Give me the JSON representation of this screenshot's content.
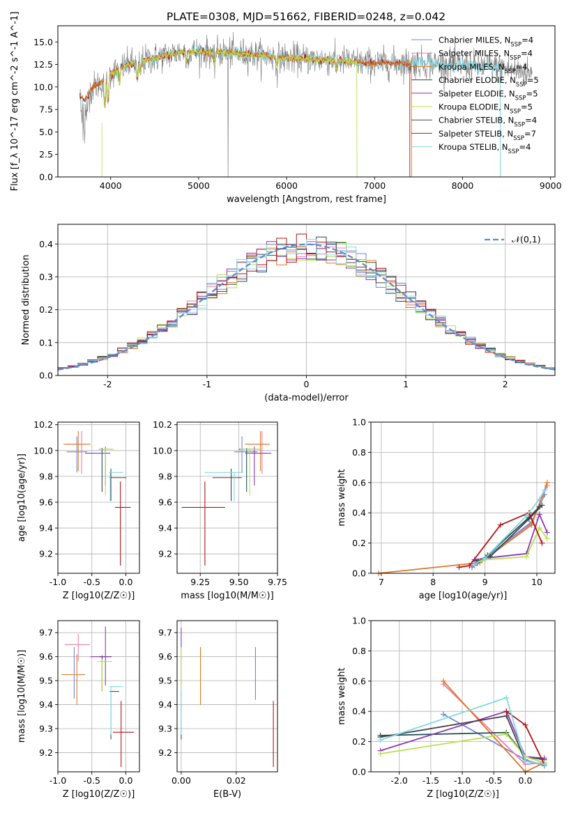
{
  "title": "PLATE=0308, MJD=51662, FIBERID=0248, z=0.042",
  "colors": {
    "Chabrier MILES": "#6a89d6",
    "Salpeter MILES": "#ea7fa9",
    "Kroupa MILES": "#e07722",
    "Chabrier ELODIE": "#1f4d57",
    "Salpeter ELODIE": "#8e35b5",
    "Kroupa ELODIE": "#b7e14a",
    "Chabrier STELIB": "#444444",
    "Salpeter STELIB": "#b21212",
    "Kroupa STELIB": "#7fd9e3",
    "gaussian": "#5b8bd6"
  },
  "chart_data": [
    {
      "id": "spectrum",
      "type": "line",
      "title": "PLATE=0308, MJD=51662, FIBERID=0248, z=0.042",
      "xlabel": "wavelength [Angstrom, rest frame]",
      "ylabel": "Flux [f_λ 10^-17 erg cm^-2 s^-1 A^-1]",
      "xlim": [
        3400,
        9050
      ],
      "ylim": [
        0,
        16.8
      ],
      "xticks": [
        4000,
        5000,
        6000,
        7000,
        8000,
        9000
      ],
      "yticks": [
        0.0,
        2.5,
        5.0,
        7.5,
        10.0,
        12.5,
        15.0
      ],
      "legend_position": "upper-right",
      "legend": [
        {
          "name": "Chabrier MILES",
          "nssp": "4"
        },
        {
          "name": "Salpeter MILES",
          "nssp": "4"
        },
        {
          "name": "Kroupa MILES",
          "nssp": "4"
        },
        {
          "name": "Chabrier ELODIE",
          "nssp": "5"
        },
        {
          "name": "Salpeter ELODIE",
          "nssp": "5"
        },
        {
          "name": "Kroupa ELODIE",
          "nssp": "5"
        },
        {
          "name": "Chabrier STELIB",
          "nssp": "4"
        },
        {
          "name": "Salpeter STELIB",
          "nssp": "7"
        },
        {
          "name": "Kroupa STELIB",
          "nssp": "4"
        }
      ],
      "data_continuum": [
        [
          3650,
          9.0
        ],
        [
          3700,
          8.5
        ],
        [
          3800,
          10.0
        ],
        [
          3900,
          10.5
        ],
        [
          4000,
          11.5
        ],
        [
          4200,
          12.5
        ],
        [
          4500,
          13.2
        ],
        [
          4800,
          13.9
        ],
        [
          5200,
          13.9
        ],
        [
          5600,
          13.6
        ],
        [
          6000,
          13.2
        ],
        [
          6500,
          13.0
        ],
        [
          7000,
          12.6
        ],
        [
          7500,
          12.7
        ],
        [
          8000,
          12.4
        ],
        [
          8400,
          12.2
        ],
        [
          8800,
          11.5
        ]
      ],
      "models": [
        {
          "name": "Kroupa STELIB",
          "wmin": 3650,
          "wmax": 8430
        },
        {
          "name": "Salpeter STELIB",
          "wmin": 3650,
          "wmax": 7400
        },
        {
          "name": "Kroupa MILES",
          "wmin": 3650,
          "wmax": 7420
        },
        {
          "name": "Kroupa ELODIE",
          "wmin": 3880,
          "wmax": 6800
        }
      ]
    },
    {
      "id": "residuals",
      "type": "line",
      "xlabel": "(data-model)/error",
      "ylabel": "Normed distribution",
      "xlim": [
        -2.5,
        2.5
      ],
      "ylim": [
        0,
        0.46
      ],
      "xticks": [
        -2,
        -1,
        0,
        1,
        2
      ],
      "yticks": [
        0.0,
        0.1,
        0.2,
        0.3,
        0.4
      ],
      "grid": true,
      "legend_position": "upper-right",
      "gaussian_label": "𝒩(0,1)",
      "bin_width": 0.1
    },
    {
      "id": "age_vs_Z",
      "type": "scatter",
      "xlabel": "Z [log10(Z/Z☉)]",
      "ylabel": "age  [log10(age/yr)]",
      "xlim": [
        -1.0,
        0.2
      ],
      "ylim": [
        9.05,
        10.22
      ],
      "xticks": [
        -1.0,
        -0.5,
        0.0
      ],
      "yticks": [
        9.2,
        9.4,
        9.6,
        9.8,
        10.0,
        10.2
      ],
      "grid": true,
      "points": [
        {
          "model": "Chabrier MILES",
          "x": -0.72,
          "xerr": [
            0.15,
            0.15
          ],
          "y": 9.99,
          "yerr": [
            0.16,
            0.12
          ]
        },
        {
          "model": "Salpeter MILES",
          "x": -0.65,
          "xerr": [
            0.27,
            0.1
          ],
          "y": 10.05,
          "yerr": [
            0.23,
            0.1
          ]
        },
        {
          "model": "Kroupa MILES",
          "x": -0.7,
          "xerr": [
            0.2,
            0.18
          ],
          "y": 10.05,
          "yerr": [
            0.21,
            0.1
          ]
        },
        {
          "model": "Chabrier ELODIE",
          "x": -0.35,
          "xerr": [
            0.05,
            0.15
          ],
          "y": 10.01,
          "yerr": [
            0.33,
            0.01
          ]
        },
        {
          "model": "Salpeter ELODIE",
          "x": -0.3,
          "xerr": [
            0.3,
            0.07
          ],
          "y": 9.98,
          "yerr": [
            0.25,
            0.05
          ]
        },
        {
          "model": "Kroupa ELODIE",
          "x": -0.3,
          "xerr": [
            0.1,
            0.12
          ],
          "y": 10.01,
          "yerr": [
            0.36,
            0.01
          ]
        },
        {
          "model": "Chabrier STELIB",
          "x": -0.22,
          "xerr": [
            0.02,
            0.23
          ],
          "y": 9.79,
          "yerr": [
            0.18,
            0.07
          ]
        },
        {
          "model": "Salpeter STELIB",
          "x": -0.08,
          "xerr": [
            0.08,
            0.15
          ],
          "y": 9.56,
          "yerr": [
            0.45,
            0.2
          ]
        },
        {
          "model": "Kroupa STELIB",
          "x": -0.23,
          "xerr": [
            0.02,
            0.19
          ],
          "y": 9.83,
          "yerr": [
            0.22,
            0.0
          ]
        }
      ]
    },
    {
      "id": "age_vs_mass",
      "type": "scatter",
      "xlabel": "mass [log10(M/M☉)]",
      "xlim": [
        9.1,
        9.75
      ],
      "ylim": [
        9.05,
        10.22
      ],
      "xticks": [
        9.25,
        9.5,
        9.75
      ],
      "yticks": [
        9.2,
        9.4,
        9.6,
        9.8,
        10.0,
        10.2
      ],
      "grid": true,
      "points": [
        {
          "model": "Chabrier MILES",
          "x": 9.52,
          "xerr": [
            0.05,
            0.1
          ],
          "y": 9.99,
          "yerr": [
            0.16,
            0.12
          ]
        },
        {
          "model": "Salpeter MILES",
          "x": 9.65,
          "xerr": [
            0.1,
            0.05
          ],
          "y": 10.05,
          "yerr": [
            0.23,
            0.1
          ]
        },
        {
          "model": "Kroupa MILES",
          "x": 9.64,
          "xerr": [
            0.1,
            0.06
          ],
          "y": 10.05,
          "yerr": [
            0.21,
            0.1
          ]
        },
        {
          "model": "Chabrier ELODIE",
          "x": 9.55,
          "xerr": [
            0.05,
            0.09
          ],
          "y": 10.01,
          "yerr": [
            0.33,
            0.01
          ]
        },
        {
          "model": "Salpeter ELODIE",
          "x": 9.6,
          "xerr": [
            0.06,
            0.11
          ],
          "y": 9.98,
          "yerr": [
            0.25,
            0.05
          ]
        },
        {
          "model": "Kroupa ELODIE",
          "x": 9.57,
          "xerr": [
            0.06,
            0.08
          ],
          "y": 10.01,
          "yerr": [
            0.36,
            0.01
          ]
        },
        {
          "model": "Chabrier STELIB",
          "x": 9.45,
          "xerr": [
            0.12,
            0.07
          ],
          "y": 9.79,
          "yerr": [
            0.18,
            0.07
          ]
        },
        {
          "model": "Salpeter STELIB",
          "x": 9.28,
          "xerr": [
            0.15,
            0.13
          ],
          "y": 9.56,
          "yerr": [
            0.45,
            0.2
          ]
        },
        {
          "model": "Kroupa STELIB",
          "x": 9.47,
          "xerr": [
            0.19,
            0.06
          ],
          "y": 9.83,
          "yerr": [
            0.22,
            0.0
          ]
        }
      ]
    },
    {
      "id": "massweight_vs_age",
      "type": "line",
      "xlabel": "age  [log10(age/yr)]",
      "ylabel": "mass weight",
      "xlim": [
        6.8,
        10.35
      ],
      "ylim": [
        0,
        1.0
      ],
      "xticks": [
        7,
        8,
        9,
        10
      ],
      "yticks": [
        0.0,
        0.2,
        0.4,
        0.6,
        0.8,
        1.0
      ],
      "grid": true,
      "series": [
        {
          "name": "Chabrier MILES",
          "x": [
            8.75,
            9.0,
            9.9,
            10.15
          ],
          "y": [
            0.04,
            0.1,
            0.34,
            0.52
          ]
        },
        {
          "name": "Salpeter MILES",
          "x": [
            8.8,
            9.0,
            9.9,
            10.2
          ],
          "y": [
            0.05,
            0.09,
            0.33,
            0.58
          ]
        },
        {
          "name": "Kroupa MILES",
          "x": [
            6.95,
            8.9,
            9.9,
            10.2
          ],
          "y": [
            0.0,
            0.07,
            0.32,
            0.6
          ]
        },
        {
          "name": "Chabrier ELODIE",
          "x": [
            8.8,
            9.1,
            9.85,
            10.1
          ],
          "y": [
            0.08,
            0.11,
            0.36,
            0.45
          ]
        },
        {
          "name": "Salpeter ELODIE",
          "x": [
            8.8,
            9.0,
            9.8,
            10.05,
            10.2
          ],
          "y": [
            0.09,
            0.1,
            0.13,
            0.39,
            0.27
          ]
        },
        {
          "name": "Kroupa ELODIE",
          "x": [
            8.9,
            9.0,
            9.8,
            10.05,
            10.2
          ],
          "y": [
            0.08,
            0.09,
            0.11,
            0.3,
            0.23
          ]
        },
        {
          "name": "Chabrier STELIB",
          "x": [
            8.85,
            9.05,
            9.85,
            10.05
          ],
          "y": [
            0.07,
            0.12,
            0.37,
            0.44
          ]
        },
        {
          "name": "Salpeter STELIB",
          "x": [
            8.5,
            8.7,
            9.3,
            9.85,
            10.1
          ],
          "y": [
            0.04,
            0.05,
            0.32,
            0.4,
            0.2
          ]
        },
        {
          "name": "Kroupa STELIB",
          "x": [
            8.8,
            9.0,
            9.8,
            10.05,
            10.15
          ],
          "y": [
            0.06,
            0.1,
            0.38,
            0.49,
            0.55
          ]
        }
      ]
    },
    {
      "id": "mass_vs_Z",
      "type": "scatter",
      "xlabel": "Z [log10(Z/Z☉)]",
      "ylabel": "mass [log10(M/M☉)]",
      "xlim": [
        -1.0,
        0.2
      ],
      "ylim": [
        9.12,
        9.75
      ],
      "xticks": [
        -1.0,
        -0.5,
        0.0
      ],
      "yticks": [
        9.2,
        9.3,
        9.4,
        9.5,
        9.6,
        9.7
      ],
      "grid": true,
      "points": [
        {
          "model": "Chabrier MILES",
          "x": -0.76,
          "xerr": [
            0.17,
            0.14
          ],
          "y": 9.525,
          "yerr": [
            0.1,
            0.115
          ]
        },
        {
          "model": "Salpeter MILES",
          "x": -0.7,
          "xerr": [
            0.2,
            0.17
          ],
          "y": 9.65,
          "yerr": [
            0.07,
            0.045
          ]
        },
        {
          "model": "Kroupa MILES",
          "x": -0.72,
          "xerr": [
            0.23,
            0.12
          ],
          "y": 9.525,
          "yerr": [
            0.125,
            0.085
          ]
        },
        {
          "model": "Chabrier ELODIE",
          "x": -0.35,
          "xerr": [
            0.05,
            0.14
          ],
          "y": 9.6,
          "yerr": [
            0.145,
            0.005
          ]
        },
        {
          "model": "Salpeter ELODIE",
          "x": -0.3,
          "xerr": [
            0.22,
            0.08
          ],
          "y": 9.6,
          "yerr": [
            0.12,
            0.125
          ]
        },
        {
          "model": "Kroupa ELODIE",
          "x": -0.35,
          "xerr": [
            0.07,
            0.14
          ],
          "y": 9.58,
          "yerr": [
            0.125,
            0.01
          ]
        },
        {
          "model": "Chabrier STELIB",
          "x": -0.22,
          "xerr": [
            0.02,
            0.12
          ],
          "y": 9.455,
          "yerr": [
            0.2,
            0.005
          ]
        },
        {
          "model": "Salpeter STELIB",
          "x": -0.07,
          "xerr": [
            0.12,
            0.19
          ],
          "y": 9.285,
          "yerr": [
            0.145,
            0.13
          ]
        },
        {
          "model": "Kroupa STELIB",
          "x": -0.22,
          "xerr": [
            0.02,
            0.18
          ],
          "y": 9.475,
          "yerr": [
            0.2,
            0.0
          ]
        }
      ]
    },
    {
      "id": "mass_vs_EBV",
      "type": "scatter",
      "xlabel": "E(B-V)",
      "xlim": [
        -0.0015,
        0.035
      ],
      "ylim": [
        9.12,
        9.75
      ],
      "xticks": [
        0.0,
        0.02
      ],
      "yticks": [
        9.2,
        9.3,
        9.4,
        9.5,
        9.6,
        9.7
      ],
      "grid": true,
      "points": [
        {
          "model": "Chabrier MILES",
          "x": 0.027,
          "y": 9.53,
          "yerr": [
            0.11,
            0.11
          ]
        },
        {
          "model": "Kroupa MILES",
          "x": 0.007,
          "y": 9.52,
          "yerr": [
            0.12,
            0.12
          ]
        },
        {
          "model": "Salpeter ELODIE",
          "x": 0.0,
          "y": 9.6,
          "yerr": [
            0.12,
            0.12
          ]
        },
        {
          "model": "Kroupa ELODIE",
          "x": 0.0,
          "y": 9.58,
          "yerr": [
            0.12,
            0.06
          ]
        },
        {
          "model": "Chabrier STELIB",
          "x": 0.0,
          "y": 9.455,
          "yerr": [
            0.2,
            0.0
          ]
        },
        {
          "model": "Salpeter STELIB",
          "x": 0.0335,
          "y": 9.285,
          "yerr": [
            0.145,
            0.13
          ]
        },
        {
          "model": "Kroupa STELIB",
          "x": 0.0,
          "y": 9.475,
          "yerr": [
            0.2,
            0.0
          ]
        }
      ]
    },
    {
      "id": "massweight_vs_Z",
      "type": "line",
      "xlabel": "Z [log10(Z/Z☉)]",
      "ylabel": "mass weight",
      "xlim": [
        -2.45,
        0.47
      ],
      "ylim": [
        0,
        1.0
      ],
      "xticks": [
        -2.0,
        -1.5,
        -1.0,
        -0.5,
        0.0
      ],
      "yticks": [
        0.0,
        0.2,
        0.4,
        0.6,
        0.8,
        1.0
      ],
      "grid": true,
      "series": [
        {
          "name": "Chabrier MILES",
          "x": [
            -1.3,
            0.0,
            0.3
          ],
          "y": [
            0.38,
            0.08,
            0.04
          ]
        },
        {
          "name": "Salpeter MILES",
          "x": [
            -1.3,
            0.0,
            0.3
          ],
          "y": [
            0.58,
            0.05,
            0.06
          ]
        },
        {
          "name": "Kroupa MILES",
          "x": [
            -1.3,
            0.0,
            0.3
          ],
          "y": [
            0.6,
            0.0,
            0.06
          ]
        },
        {
          "name": "Chabrier ELODIE",
          "x": [
            -2.3,
            -0.3,
            0.0,
            0.3
          ],
          "y": [
            0.24,
            0.26,
            0.1,
            0.08
          ]
        },
        {
          "name": "Salpeter ELODIE",
          "x": [
            -2.3,
            -0.3,
            0.0,
            0.3
          ],
          "y": [
            0.14,
            0.4,
            0.1,
            0.09
          ]
        },
        {
          "name": "Kroupa ELODIE",
          "x": [
            -2.3,
            -0.3,
            0.0,
            0.3
          ],
          "y": [
            0.12,
            0.25,
            0.1,
            0.06
          ]
        },
        {
          "name": "Chabrier STELIB",
          "x": [
            -2.3,
            -0.3,
            0.0,
            0.3
          ],
          "y": [
            0.23,
            0.37,
            0.07,
            0.05
          ]
        },
        {
          "name": "Salpeter STELIB",
          "x": [
            -0.3,
            0.0,
            0.3
          ],
          "y": [
            0.4,
            0.31,
            0.05
          ]
        },
        {
          "name": "Kroupa STELIB",
          "x": [
            -2.3,
            -0.3,
            0.0,
            0.3
          ],
          "y": [
            0.21,
            0.49,
            0.07,
            0.05
          ]
        }
      ]
    }
  ]
}
